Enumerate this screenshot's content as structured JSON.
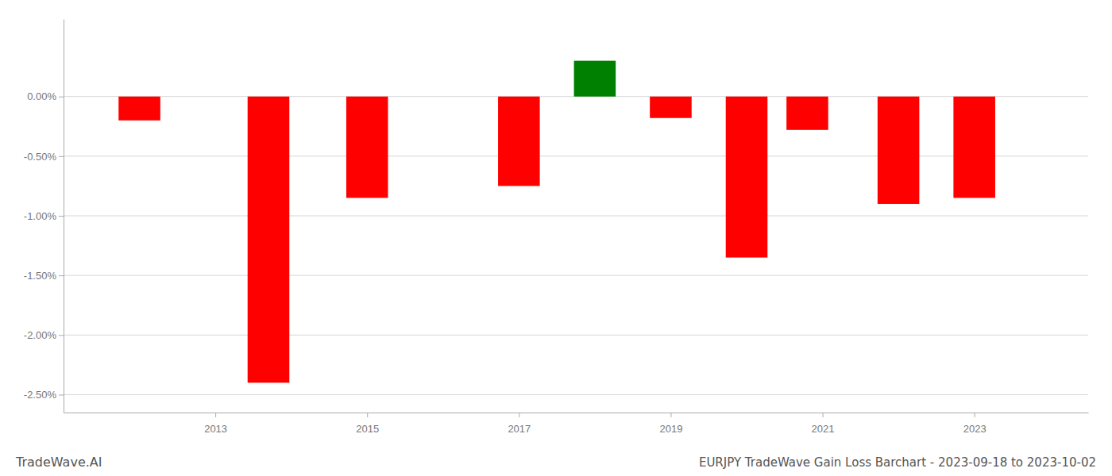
{
  "chart_data": {
    "type": "bar",
    "title": "EURJPY TradeWave Gain Loss Barchart - 2023-09-18 to 2023-10-02",
    "annotations": [
      "TradeWave.AI"
    ],
    "x": [
      2012,
      2013.7,
      2015,
      2017,
      2018,
      2019,
      2020,
      2020.8,
      2022,
      2023
    ],
    "values": [
      -0.002,
      -0.024,
      -0.0085,
      -0.0075,
      0.003,
      -0.0018,
      -0.0135,
      -0.0028,
      -0.009,
      -0.0085
    ],
    "colors": [
      "#ff0000",
      "#ff0000",
      "#ff0000",
      "#ff0000",
      "#008000",
      "#ff0000",
      "#ff0000",
      "#ff0000",
      "#ff0000",
      "#ff0000"
    ],
    "xlim": [
      2011.0,
      2024.5
    ],
    "xticks": [
      2013,
      2015,
      2017,
      2019,
      2021,
      2023
    ],
    "ylim": [
      -0.0265,
      0.0065
    ],
    "yticks": [
      {
        "value": -0.025,
        "label": "-2.50%"
      },
      {
        "value": -0.02,
        "label": "-2.00%"
      },
      {
        "value": -0.015,
        "label": "-1.50%"
      },
      {
        "value": -0.01,
        "label": "-1.00%"
      },
      {
        "value": -0.005,
        "label": "-0.50%"
      },
      {
        "value": 0.0,
        "label": "0.00%"
      }
    ],
    "grid": true
  }
}
